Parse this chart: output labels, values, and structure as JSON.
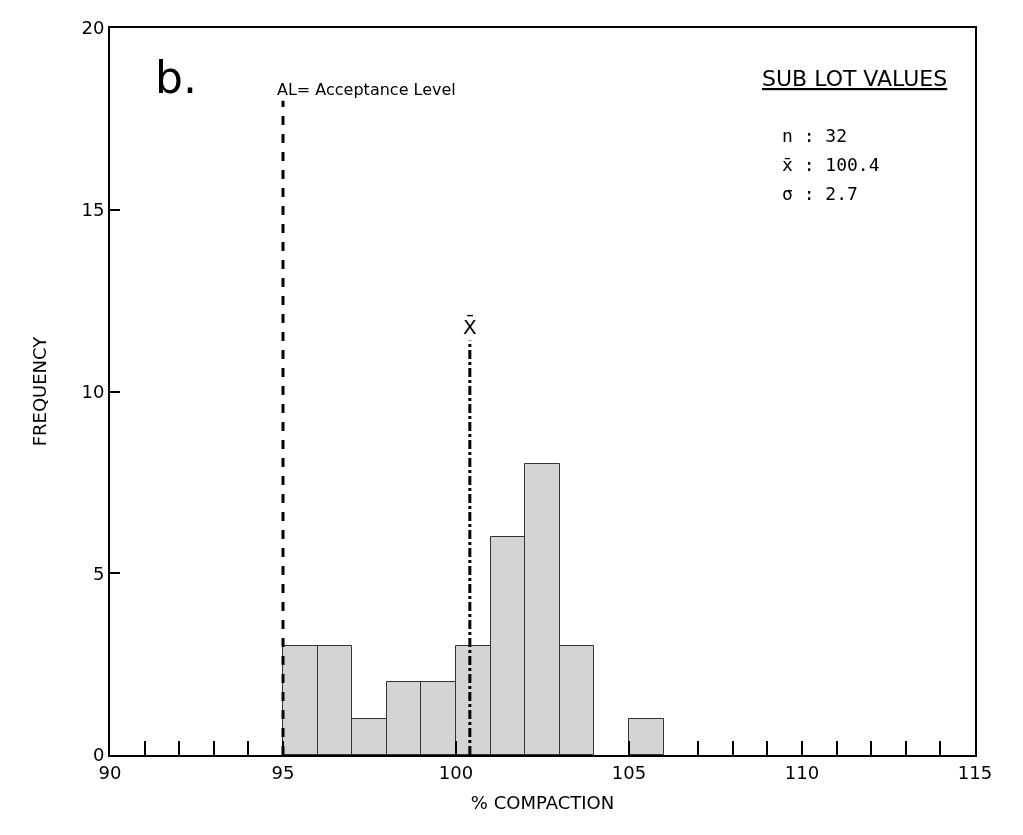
{
  "chart_data": {
    "type": "histogram",
    "xlabel": "% COMPACTION",
    "ylabel": "FREQUENCY",
    "bins": [
      95,
      96,
      97,
      98,
      99,
      100,
      101,
      102,
      103,
      104,
      105,
      106
    ],
    "values": [
      3,
      3,
      1,
      2,
      2,
      3,
      6,
      8,
      3,
      0,
      1
    ],
    "color": "#d4d4d4",
    "xlim": [
      90,
      115
    ],
    "ylim": [
      0,
      20
    ],
    "xticks": [
      90,
      {
        "value": 91,
        "label": null
      },
      {
        "value": 92,
        "label": null
      },
      {
        "value": 93,
        "label": null
      },
      {
        "value": 94,
        "label": null
      },
      95,
      100,
      105,
      {
        "value": 107,
        "label": null
      },
      {
        "value": 108,
        "label": null
      },
      {
        "value": 109,
        "label": null
      },
      110,
      {
        "value": 111,
        "label": null
      },
      {
        "value": 112,
        "label": null
      },
      {
        "value": 113,
        "label": null
      },
      {
        "value": 114,
        "label": null
      },
      115
    ],
    "yticks": [
      0,
      5,
      10,
      15,
      20
    ],
    "ref_lines": [
      {
        "axis": "x",
        "value": 95,
        "label": "AL= Acceptance Level",
        "line_style": "dashed",
        "color": "#000000"
      },
      {
        "axis": "x",
        "value": 100.4,
        "label": "X̄",
        "line_style": "dashdot",
        "color": "#000000"
      }
    ],
    "annotations": [
      "b.",
      "SUB LOT VALUES",
      "n : 32",
      "x̄ : 100.4",
      "σ : 2.7"
    ]
  }
}
